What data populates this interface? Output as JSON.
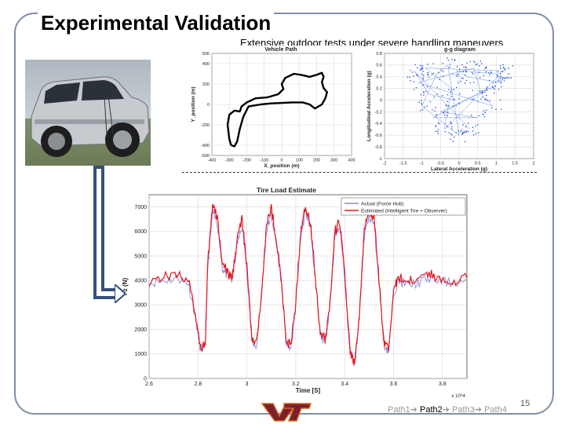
{
  "slide": {
    "title": "Experimental Validation",
    "subtitle": "Extensive outdoor tests under severe handling maneuvers",
    "page_number": "15",
    "nav_paths": [
      "Path1",
      "Path2",
      "Path3",
      "Path4"
    ],
    "current_path": "Path2",
    "colors": {
      "frame": "#7f8fa8",
      "arrow": "#35507a",
      "logo_maroon": "#7a1f2b",
      "logo_orange": "#d9661c"
    }
  },
  "chart_data": [
    {
      "type": "line",
      "title": "Vehicle Path",
      "xlabel": "X_position (m)",
      "ylabel": "Y_position (m)",
      "xlim": [
        -400,
        400
      ],
      "ylim": [
        -500,
        500
      ],
      "xticks": [
        "-400",
        "-300",
        "-200",
        "-100",
        "0",
        "100",
        "200",
        "300",
        "400"
      ],
      "yticks": [
        "500",
        "400",
        "200",
        "0",
        "-200",
        "-400",
        "-500"
      ],
      "series": [
        {
          "values_xy": [
            [
              -290,
              -400
            ],
            [
              -300,
              -340
            ],
            [
              -310,
              -200
            ],
            [
              -300,
              -100
            ],
            [
              -270,
              -60
            ],
            [
              -240,
              -70
            ],
            [
              -230,
              -20
            ],
            [
              -200,
              20
            ],
            [
              -150,
              60
            ],
            [
              -80,
              70
            ],
            [
              -20,
              100
            ],
            [
              10,
              150
            ],
            [
              0,
              200
            ],
            [
              20,
              260
            ],
            [
              70,
              300
            ],
            [
              110,
              290
            ],
            [
              160,
              270
            ],
            [
              200,
              290
            ],
            [
              230,
              310
            ],
            [
              240,
              270
            ],
            [
              230,
              220
            ],
            [
              240,
              160
            ],
            [
              260,
              120
            ],
            [
              250,
              60
            ],
            [
              230,
              0
            ],
            [
              190,
              -40
            ],
            [
              160,
              0
            ],
            [
              120,
              20
            ],
            [
              60,
              20
            ],
            [
              -60,
              10
            ],
            [
              -120,
              0
            ],
            [
              -190,
              -20
            ],
            [
              -220,
              -120
            ],
            [
              -240,
              -240
            ],
            [
              -255,
              -360
            ],
            [
              -270,
              -410
            ],
            [
              -290,
              -400
            ]
          ]
        }
      ]
    },
    {
      "type": "scatter",
      "title": "g-g diagram",
      "xlabel": "Lateral Acceleration (g)",
      "ylabel": "Longitudinal Acceleration (g)",
      "xlim": [
        -2,
        2
      ],
      "ylim": [
        -1,
        0.8
      ],
      "xticks": [
        "-2",
        "-1.5",
        "-1",
        "-0.5",
        "0",
        "0.5",
        "1",
        "1.5",
        "2"
      ],
      "yticks": [
        "0.8",
        "0.6",
        "0.4",
        "0.2",
        "0",
        "-0.2",
        "-0.4",
        "-0.6",
        "-0.8",
        "-1"
      ],
      "series": [
        {
          "values_xy": [
            [
              -1.2,
              0.5
            ],
            [
              -1.1,
              0.3
            ],
            [
              -0.9,
              0.55
            ],
            [
              -0.8,
              0.1
            ],
            [
              -0.6,
              0.45
            ],
            [
              -0.5,
              -0.2
            ],
            [
              -0.3,
              0.6
            ],
            [
              -0.2,
              0.2
            ],
            [
              0,
              0.5
            ],
            [
              0.2,
              0.4
            ],
            [
              0.4,
              0.55
            ],
            [
              0.5,
              -0.3
            ],
            [
              0.7,
              0.5
            ],
            [
              0.8,
              0.2
            ],
            [
              0.9,
              -0.1
            ],
            [
              1.0,
              0.45
            ],
            [
              1.1,
              0.3
            ],
            [
              1.2,
              0.5
            ],
            [
              -1.0,
              -0.1
            ],
            [
              -0.7,
              -0.3
            ],
            [
              0,
              -0.6
            ],
            [
              0.3,
              -0.5
            ],
            [
              -0.4,
              -0.5
            ],
            [
              0.6,
              0.1
            ],
            [
              -0.1,
              0.0
            ]
          ]
        }
      ]
    },
    {
      "type": "line",
      "title": "Tire Load Estimate",
      "xlabel": "Time [S]",
      "ylabel": "Fz (N)",
      "xlim": [
        2.6,
        3.9
      ],
      "ylim": [
        0,
        7500
      ],
      "x_multiplier": "x 10^4",
      "xticks": [
        "2.6",
        "2.8",
        "3",
        "3.2",
        "3.4",
        "3.6",
        "3.8"
      ],
      "yticks": [
        "7000",
        "6000",
        "5000",
        "4000",
        "3000",
        "2000",
        "1000",
        "0"
      ],
      "legend": [
        "Actual (Force Hub)",
        "Estimated (Intelligent Tire + Observer)"
      ],
      "legend_position": "top-right",
      "series": [
        {
          "name": "Actual (Force Hub)",
          "values_xy": [
            [
              2.6,
              3900
            ],
            [
              2.66,
              4000
            ],
            [
              2.72,
              4100
            ],
            [
              2.76,
              3900
            ],
            [
              2.79,
              2500
            ],
            [
              2.81,
              1200
            ],
            [
              2.83,
              1300
            ],
            [
              2.84,
              4500
            ],
            [
              2.86,
              6800
            ],
            [
              2.88,
              6300
            ],
            [
              2.9,
              4500
            ],
            [
              2.92,
              4200
            ],
            [
              2.94,
              4000
            ],
            [
              2.96,
              5500
            ],
            [
              2.98,
              6200
            ],
            [
              3.0,
              4500
            ],
            [
              3.02,
              1500
            ],
            [
              3.04,
              1300
            ],
            [
              3.06,
              3500
            ],
            [
              3.08,
              6000
            ],
            [
              3.1,
              6700
            ],
            [
              3.12,
              5500
            ],
            [
              3.14,
              4000
            ],
            [
              3.16,
              1500
            ],
            [
              3.18,
              1200
            ],
            [
              3.2,
              3000
            ],
            [
              3.22,
              5800
            ],
            [
              3.24,
              6800
            ],
            [
              3.26,
              6200
            ],
            [
              3.28,
              4000
            ],
            [
              3.3,
              1800
            ],
            [
              3.32,
              1500
            ],
            [
              3.34,
              3000
            ],
            [
              3.36,
              5800
            ],
            [
              3.38,
              6200
            ],
            [
              3.4,
              4200
            ],
            [
              3.42,
              1200
            ],
            [
              3.44,
              600
            ],
            [
              3.46,
              2500
            ],
            [
              3.48,
              5800
            ],
            [
              3.5,
              6600
            ],
            [
              3.52,
              6300
            ],
            [
              3.54,
              4000
            ],
            [
              3.56,
              1400
            ],
            [
              3.58,
              1100
            ],
            [
              3.6,
              3500
            ],
            [
              3.62,
              4000
            ],
            [
              3.66,
              3800
            ],
            [
              3.7,
              3900
            ],
            [
              3.74,
              4100
            ],
            [
              3.78,
              4000
            ],
            [
              3.84,
              3900
            ],
            [
              3.9,
              4000
            ]
          ]
        },
        {
          "name": "Estimated (Intelligent Tire + Observer)",
          "values_xy": [
            [
              2.6,
              4000
            ],
            [
              2.66,
              4150
            ],
            [
              2.72,
              4250
            ],
            [
              2.76,
              4000
            ],
            [
              2.79,
              2600
            ],
            [
              2.81,
              1300
            ],
            [
              2.83,
              1400
            ],
            [
              2.84,
              4700
            ],
            [
              2.86,
              7100
            ],
            [
              2.88,
              6500
            ],
            [
              2.9,
              4700
            ],
            [
              2.92,
              4300
            ],
            [
              2.94,
              4100
            ],
            [
              2.96,
              5700
            ],
            [
              2.98,
              6500
            ],
            [
              3.0,
              4600
            ],
            [
              3.02,
              1600
            ],
            [
              3.04,
              1400
            ],
            [
              3.06,
              3600
            ],
            [
              3.08,
              6200
            ],
            [
              3.1,
              7000
            ],
            [
              3.12,
              5700
            ],
            [
              3.14,
              4100
            ],
            [
              3.16,
              1600
            ],
            [
              3.18,
              1300
            ],
            [
              3.2,
              3100
            ],
            [
              3.22,
              6000
            ],
            [
              3.24,
              7000
            ],
            [
              3.26,
              6400
            ],
            [
              3.28,
              4100
            ],
            [
              3.3,
              1900
            ],
            [
              3.32,
              1600
            ],
            [
              3.34,
              3100
            ],
            [
              3.36,
              6000
            ],
            [
              3.38,
              6400
            ],
            [
              3.4,
              4300
            ],
            [
              3.42,
              1300
            ],
            [
              3.44,
              500
            ],
            [
              3.46,
              2600
            ],
            [
              3.48,
              6000
            ],
            [
              3.5,
              6900
            ],
            [
              3.52,
              6500
            ],
            [
              3.54,
              4100
            ],
            [
              3.56,
              1500
            ],
            [
              3.58,
              1200
            ],
            [
              3.6,
              3600
            ],
            [
              3.62,
              4100
            ],
            [
              3.66,
              4000
            ],
            [
              3.7,
              4100
            ],
            [
              3.74,
              4300
            ],
            [
              3.78,
              4100
            ],
            [
              3.84,
              4000
            ],
            [
              3.9,
              4100
            ]
          ]
        }
      ]
    }
  ]
}
